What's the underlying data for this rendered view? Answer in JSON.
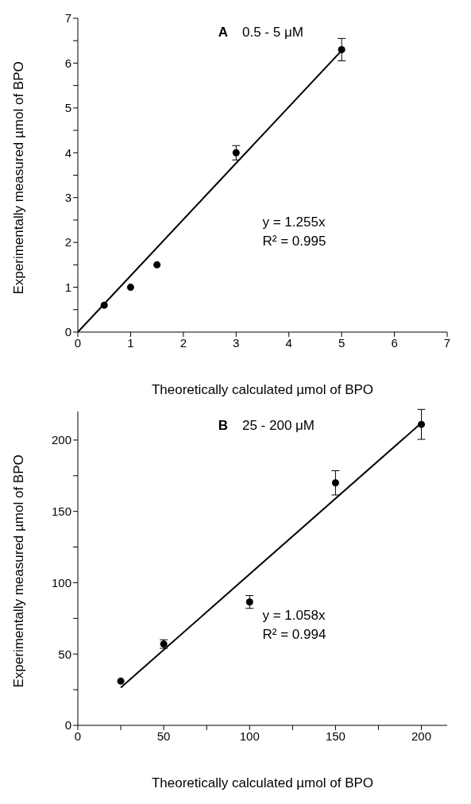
{
  "chart_data": [
    {
      "type": "scatter",
      "title": "A",
      "subtitle": "0.5 - 5 μM",
      "xlabel": "Theoretically calculated µmol of BPO",
      "ylabel": "Experimentally measured  µmol of BPO",
      "series": [
        {
          "type": "scatter",
          "color": "#000000",
          "x": [
            0.5,
            1,
            1.5,
            3,
            5
          ],
          "values": [
            0.6,
            1.0,
            1.5,
            4.0,
            6.3
          ],
          "errors": [
            null,
            null,
            null,
            0.16,
            0.25
          ],
          "marker": "circle"
        },
        {
          "type": "line",
          "color": "#000000",
          "x": [
            0,
            5
          ],
          "values": [
            0,
            6.28
          ],
          "marker": "none"
        }
      ],
      "xlim": [
        0,
        7
      ],
      "xticks": [
        0,
        1,
        2,
        3,
        4,
        5,
        6,
        7
      ],
      "ylim": [
        0,
        7
      ],
      "yticks": [
        0,
        {
          "value": 0.5,
          "label": null
        },
        1,
        {
          "value": 1.5,
          "label": null
        },
        2,
        {
          "value": 2.5,
          "label": null
        },
        3,
        {
          "value": 3.5,
          "label": null
        },
        4,
        {
          "value": 4.5,
          "label": null
        },
        5,
        {
          "value": 5.5,
          "label": null
        },
        6,
        {
          "value": 6.5,
          "label": null
        },
        7
      ],
      "grid": false,
      "legend": false,
      "annotations": [
        "y = 1.255x",
        "R² = 0.995"
      ]
    },
    {
      "type": "scatter",
      "title": "B",
      "subtitle": "25 - 200 μM",
      "xlabel": "Theoretically calculated µmol of BPO",
      "ylabel": "Experimentally measured µmol of BPO",
      "series": [
        {
          "type": "scatter",
          "color": "#000000",
          "x": [
            25,
            50,
            100,
            150,
            200
          ],
          "values": [
            31,
            57,
            86.5,
            170,
            211
          ],
          "errors": [
            null,
            3,
            4.5,
            8.5,
            10.5
          ],
          "marker": "circle"
        },
        {
          "type": "line",
          "color": "#000000",
          "x": [
            25,
            200
          ],
          "values": [
            26.5,
            212
          ],
          "marker": "none"
        }
      ],
      "xlim": [
        0,
        215
      ],
      "xticks": [
        0,
        {
          "value": 25,
          "label": null
        },
        50,
        {
          "value": 75,
          "label": null
        },
        100,
        {
          "value": 125,
          "label": null
        },
        150,
        {
          "value": 175,
          "label": null
        },
        200
      ],
      "ylim": [
        0,
        220
      ],
      "yticks": [
        0,
        {
          "value": 25,
          "label": null
        },
        50,
        {
          "value": 75,
          "label": null
        },
        100,
        {
          "value": 125,
          "label": null
        },
        150,
        {
          "value": 175,
          "label": null
        },
        200
      ],
      "grid": false,
      "legend": false,
      "annotations": [
        "y = 1.058x",
        "R² = 0.994"
      ]
    }
  ]
}
